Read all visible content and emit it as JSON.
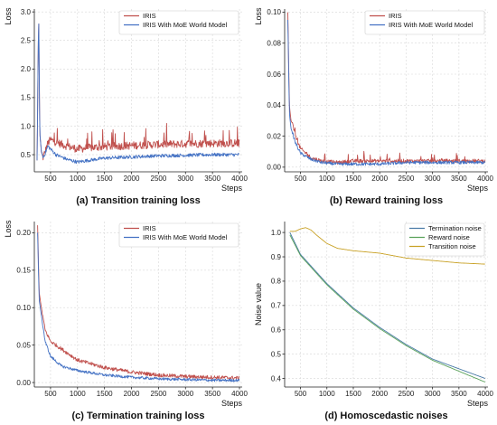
{
  "chart_data": [
    {
      "type": "line",
      "caption": "(a) Transition training loss",
      "xlabel": "Steps",
      "ylabel": "Loss",
      "xlim": [
        200,
        4050
      ],
      "ylim": [
        0.2,
        3.05
      ],
      "xticks": [
        500,
        1000,
        1500,
        2000,
        2500,
        3000,
        3500,
        4000
      ],
      "xtick_labels": [
        "500",
        "1000",
        "1500",
        "2000",
        "2500",
        "3000",
        "3500",
        "4000"
      ],
      "yticks": [
        0.5,
        1.0,
        1.5,
        2.0,
        2.5,
        3.0
      ],
      "ytick_labels": [
        "0.5",
        "1.0",
        "1.5",
        "2.0",
        "2.5",
        "3.0"
      ],
      "grid": true,
      "legend": "top-right",
      "series": [
        {
          "name": "IRIS",
          "color": "#c0504d",
          "noise": 0.07,
          "spikes": true,
          "points": [
            [
              250,
              0.4
            ],
            [
              280,
              3.0
            ],
            [
              300,
              0.9
            ],
            [
              330,
              0.55
            ],
            [
              360,
              0.45
            ],
            [
              400,
              0.55
            ],
            [
              450,
              0.7
            ],
            [
              500,
              0.76
            ],
            [
              600,
              0.72
            ],
            [
              800,
              0.65
            ],
            [
              1000,
              0.6
            ],
            [
              1200,
              0.62
            ],
            [
              1500,
              0.64
            ],
            [
              2000,
              0.66
            ],
            [
              2500,
              0.68
            ],
            [
              3000,
              0.69
            ],
            [
              3500,
              0.7
            ],
            [
              4000,
              0.7
            ]
          ]
        },
        {
          "name": "IRIS With MoE World Model",
          "color": "#4472c4",
          "noise": 0.03,
          "spikes": false,
          "points": [
            [
              250,
              0.4
            ],
            [
              280,
              3.0
            ],
            [
              300,
              0.9
            ],
            [
              330,
              0.55
            ],
            [
              360,
              0.45
            ],
            [
              400,
              0.52
            ],
            [
              450,
              0.65
            ],
            [
              500,
              0.6
            ],
            [
              600,
              0.5
            ],
            [
              800,
              0.42
            ],
            [
              1000,
              0.37
            ],
            [
              1200,
              0.4
            ],
            [
              1500,
              0.44
            ],
            [
              2000,
              0.46
            ],
            [
              2500,
              0.48
            ],
            [
              3000,
              0.49
            ],
            [
              3500,
              0.5
            ],
            [
              4000,
              0.5
            ]
          ]
        }
      ]
    },
    {
      "type": "line",
      "caption": "(b) Reward training loss",
      "xlabel": "Steps",
      "ylabel": "Loss",
      "xlim": [
        200,
        4050
      ],
      "ylim": [
        -0.003,
        0.102
      ],
      "xticks": [
        500,
        1000,
        1500,
        2000,
        2500,
        3000,
        3500,
        4000
      ],
      "xtick_labels": [
        "500",
        "1000",
        "1500",
        "2000",
        "2500",
        "3000",
        "3500",
        "4000"
      ],
      "yticks": [
        0.0,
        0.02,
        0.04,
        0.06,
        0.08,
        0.1
      ],
      "ytick_labels": [
        "0.00",
        "0.02",
        "0.04",
        "0.06",
        "0.08",
        "0.10"
      ],
      "grid": true,
      "legend": "top-right",
      "series": [
        {
          "name": "IRIS",
          "color": "#c0504d",
          "noise": 0.0012,
          "spikes": true,
          "points": [
            [
              260,
              0.1
            ],
            [
              290,
              0.04
            ],
            [
              320,
              0.03
            ],
            [
              350,
              0.028
            ],
            [
              400,
              0.02
            ],
            [
              500,
              0.012
            ],
            [
              700,
              0.006
            ],
            [
              900,
              0.004
            ],
            [
              1200,
              0.003
            ],
            [
              1500,
              0.004
            ],
            [
              2000,
              0.004
            ],
            [
              2500,
              0.004
            ],
            [
              3000,
              0.004
            ],
            [
              3500,
              0.004
            ],
            [
              4000,
              0.004
            ]
          ]
        },
        {
          "name": "IRIS With MoE World Model",
          "color": "#4472c4",
          "noise": 0.001,
          "spikes": false,
          "points": [
            [
              260,
              0.095
            ],
            [
              290,
              0.035
            ],
            [
              320,
              0.025
            ],
            [
              350,
              0.022
            ],
            [
              400,
              0.016
            ],
            [
              500,
              0.009
            ],
            [
              700,
              0.005
            ],
            [
              900,
              0.003
            ],
            [
              1200,
              0.002
            ],
            [
              1500,
              0.002
            ],
            [
              2000,
              0.002
            ],
            [
              2500,
              0.003
            ],
            [
              3000,
              0.003
            ],
            [
              3500,
              0.003
            ],
            [
              4000,
              0.003
            ]
          ]
        }
      ]
    },
    {
      "type": "line",
      "caption": "(c) Termination training loss",
      "xlabel": "Steps",
      "ylabel": "Loss",
      "xlim": [
        200,
        4050
      ],
      "ylim": [
        -0.006,
        0.215
      ],
      "xticks": [
        500,
        1000,
        1500,
        2000,
        2500,
        3000,
        3500,
        4000
      ],
      "xtick_labels": [
        "500",
        "1000",
        "1500",
        "2000",
        "2500",
        "3000",
        "3500",
        "4000"
      ],
      "yticks": [
        0.0,
        0.05,
        0.1,
        0.15,
        0.2
      ],
      "ytick_labels": [
        "0.00",
        "0.05",
        "0.10",
        "0.15",
        "0.20"
      ],
      "grid": true,
      "legend": "top-right",
      "series": [
        {
          "name": "IRIS",
          "color": "#c0504d",
          "noise": 0.0025,
          "spikes": false,
          "points": [
            [
              260,
              0.21
            ],
            [
              290,
              0.12
            ],
            [
              330,
              0.1
            ],
            [
              400,
              0.07
            ],
            [
              500,
              0.055
            ],
            [
              700,
              0.045
            ],
            [
              1000,
              0.03
            ],
            [
              1500,
              0.02
            ],
            [
              2000,
              0.014
            ],
            [
              2500,
              0.01
            ],
            [
              3000,
              0.008
            ],
            [
              3500,
              0.007
            ],
            [
              4000,
              0.006
            ]
          ]
        },
        {
          "name": "IRIS With MoE World Model",
          "color": "#4472c4",
          "noise": 0.0018,
          "spikes": false,
          "points": [
            [
              260,
              0.2
            ],
            [
              290,
              0.11
            ],
            [
              330,
              0.09
            ],
            [
              400,
              0.055
            ],
            [
              500,
              0.035
            ],
            [
              700,
              0.022
            ],
            [
              1000,
              0.016
            ],
            [
              1500,
              0.01
            ],
            [
              2000,
              0.007
            ],
            [
              2500,
              0.005
            ],
            [
              3000,
              0.004
            ],
            [
              3500,
              0.003
            ],
            [
              4000,
              0.003
            ]
          ]
        }
      ]
    },
    {
      "type": "line",
      "caption": "(d) Homoscedastic noises",
      "xlabel": "Steps",
      "ylabel": "Noise value",
      "xlim": [
        200,
        4050
      ],
      "ylim": [
        0.365,
        1.045
      ],
      "xticks": [
        500,
        1000,
        1500,
        2000,
        2500,
        3000,
        3500,
        4000
      ],
      "xtick_labels": [
        "500",
        "1000",
        "1500",
        "2000",
        "2500",
        "3000",
        "3500",
        "4000"
      ],
      "yticks": [
        0.4,
        0.5,
        0.6,
        0.7,
        0.8,
        0.9,
        1.0
      ],
      "ytick_labels": [
        "0.4",
        "0.5",
        "0.6",
        "0.7",
        "0.8",
        "0.9",
        "1.0"
      ],
      "grid": true,
      "legend": "top-right",
      "series": [
        {
          "name": "Termination noise",
          "color": "#4a7ba7",
          "noise": 0,
          "spikes": false,
          "points": [
            [
              300,
              1.0
            ],
            [
              500,
              0.91
            ],
            [
              1000,
              0.79
            ],
            [
              1500,
              0.69
            ],
            [
              2000,
              0.61
            ],
            [
              2500,
              0.54
            ],
            [
              3000,
              0.48
            ],
            [
              3500,
              0.44
            ],
            [
              4000,
              0.4
            ]
          ]
        },
        {
          "name": "Reward noise",
          "color": "#5aa25a",
          "noise": 0,
          "spikes": false,
          "points": [
            [
              300,
              0.99
            ],
            [
              500,
              0.905
            ],
            [
              1000,
              0.785
            ],
            [
              1500,
              0.685
            ],
            [
              2000,
              0.605
            ],
            [
              2500,
              0.535
            ],
            [
              3000,
              0.475
            ],
            [
              3500,
              0.43
            ],
            [
              4000,
              0.385
            ]
          ]
        },
        {
          "name": "Transition noise",
          "color": "#c9a227",
          "noise": 0,
          "spikes": false,
          "points": [
            [
              300,
              1.005
            ],
            [
              400,
              1.005
            ],
            [
              500,
              1.015
            ],
            [
              600,
              1.02
            ],
            [
              700,
              1.01
            ],
            [
              800,
              0.99
            ],
            [
              1000,
              0.955
            ],
            [
              1200,
              0.935
            ],
            [
              1500,
              0.925
            ],
            [
              2000,
              0.915
            ],
            [
              2500,
              0.895
            ],
            [
              3000,
              0.885
            ],
            [
              3500,
              0.875
            ],
            [
              4000,
              0.87
            ]
          ]
        }
      ]
    }
  ]
}
